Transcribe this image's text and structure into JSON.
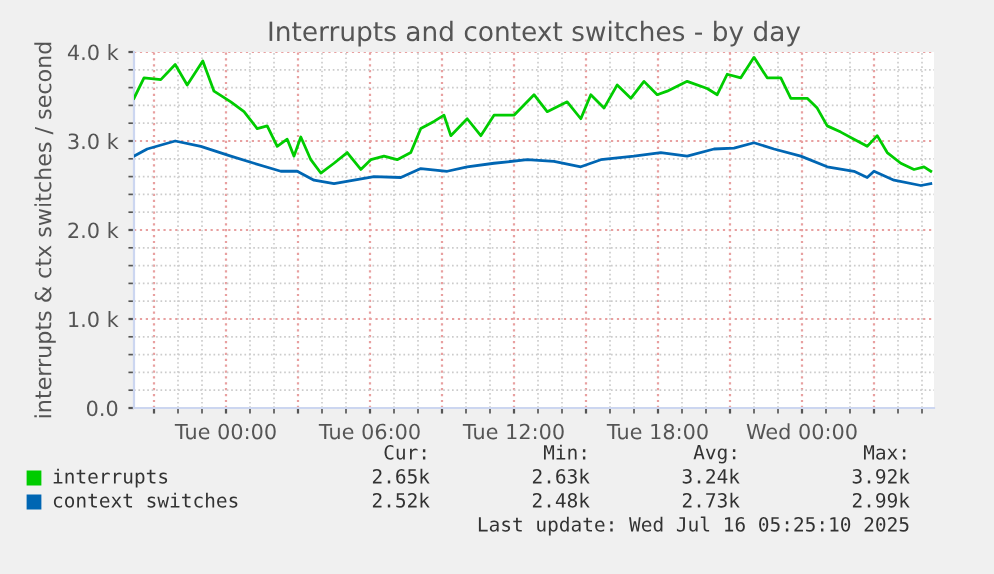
{
  "chart_data": {
    "type": "line",
    "title": "Interrupts and context switches - by day",
    "ylabel": "interrupts & ctx switches / second",
    "xlim": [
      "2025-07-14T20:10",
      "2025-07-16T05:30"
    ],
    "xticks": [
      {
        "value": "2025-07-14T21:00",
        "label": null
      },
      {
        "value": "2025-07-15T00:00",
        "label": "Tue 00:00"
      },
      {
        "value": "2025-07-15T03:00",
        "label": null
      },
      {
        "value": "2025-07-15T06:00",
        "label": "Tue 06:00"
      },
      {
        "value": "2025-07-15T09:00",
        "label": null
      },
      {
        "value": "2025-07-15T12:00",
        "label": "Tue 12:00"
      },
      {
        "value": "2025-07-15T15:00",
        "label": null
      },
      {
        "value": "2025-07-15T18:00",
        "label": "Tue 18:00"
      },
      {
        "value": "2025-07-15T21:00",
        "label": null
      },
      {
        "value": "2025-07-16T00:00",
        "label": "Wed 00:00"
      },
      {
        "value": "2025-07-16T03:00",
        "label": null
      }
    ],
    "ylim": [
      0,
      4000
    ],
    "yticks": [
      {
        "value": 0,
        "label": "0.0"
      },
      {
        "value": 1000,
        "label": "1.0 k"
      },
      {
        "value": 2000,
        "label": "2.0 k"
      },
      {
        "value": 3000,
        "label": "3.0 k"
      },
      {
        "value": 4000,
        "label": "4.0 k"
      }
    ],
    "grid": true,
    "legend": "bottom left",
    "marker": "none",
    "line_style": "solid",
    "series": [
      {
        "name": "interrupts",
        "color": "#00cc00",
        "x": [
          "2025-07-14T20:10",
          "2025-07-14T20:35",
          "2025-07-14T21:17",
          "2025-07-14T21:53",
          "2025-07-14T22:23",
          "2025-07-14T23:02",
          "2025-07-14T23:30",
          "2025-07-15T00:12",
          "2025-07-15T00:45",
          "2025-07-15T01:18",
          "2025-07-15T01:43",
          "2025-07-15T02:08",
          "2025-07-15T02:33",
          "2025-07-15T02:50",
          "2025-07-15T03:07",
          "2025-07-15T03:32",
          "2025-07-15T03:57",
          "2025-07-15T04:30",
          "2025-07-15T05:03",
          "2025-07-15T05:37",
          "2025-07-15T06:02",
          "2025-07-15T06:35",
          "2025-07-15T07:08",
          "2025-07-15T07:42",
          "2025-07-15T08:07",
          "2025-07-15T08:40",
          "2025-07-15T09:05",
          "2025-07-15T09:22",
          "2025-07-15T10:03",
          "2025-07-15T10:37",
          "2025-07-15T11:10",
          "2025-07-15T12:00",
          "2025-07-15T12:50",
          "2025-07-15T13:23",
          "2025-07-15T14:13",
          "2025-07-15T14:47",
          "2025-07-15T15:12",
          "2025-07-15T15:45",
          "2025-07-15T16:18",
          "2025-07-15T16:52",
          "2025-07-15T17:25",
          "2025-07-15T17:58",
          "2025-07-15T18:23",
          "2025-07-15T19:13",
          "2025-07-15T20:03",
          "2025-07-15T20:28",
          "2025-07-15T20:53",
          "2025-07-15T21:27",
          "2025-07-15T22:00",
          "2025-07-15T22:33",
          "2025-07-15T23:07",
          "2025-07-15T23:32",
          "2025-07-16T00:13",
          "2025-07-16T00:38",
          "2025-07-16T01:03",
          "2025-07-16T01:37",
          "2025-07-16T02:10",
          "2025-07-16T02:43",
          "2025-07-16T03:08",
          "2025-07-16T03:33",
          "2025-07-16T04:07",
          "2025-07-16T04:40",
          "2025-07-16T05:05",
          "2025-07-16T05:22"
        ],
        "values": [
          3480,
          3710,
          3690,
          3860,
          3630,
          3900,
          3560,
          3440,
          3330,
          3140,
          3170,
          2940,
          3020,
          2830,
          3045,
          2790,
          2640,
          2750,
          2870,
          2680,
          2790,
          2830,
          2790,
          2870,
          3140,
          3220,
          3290,
          3060,
          3250,
          3060,
          3290,
          3290,
          3520,
          3330,
          3440,
          3250,
          3520,
          3370,
          3630,
          3480,
          3670,
          3520,
          3560,
          3670,
          3590,
          3520,
          3750,
          3710,
          3940,
          3710,
          3710,
          3480,
          3480,
          3370,
          3170,
          3100,
          3020,
          2940,
          3060,
          2870,
          2750,
          2680,
          2710,
          2660
        ]
      },
      {
        "name": "context switches",
        "color": "#0066b3",
        "x": [
          "2025-07-14T20:10",
          "2025-07-14T20:43",
          "2025-07-14T21:53",
          "2025-07-14T22:57",
          "2025-07-15T00:12",
          "2025-07-15T01:10",
          "2025-07-15T02:17",
          "2025-07-15T02:58",
          "2025-07-15T03:40",
          "2025-07-15T04:30",
          "2025-07-15T05:20",
          "2025-07-15T06:10",
          "2025-07-15T07:17",
          "2025-07-15T08:07",
          "2025-07-15T09:13",
          "2025-07-15T10:03",
          "2025-07-15T11:10",
          "2025-07-15T12:33",
          "2025-07-15T13:40",
          "2025-07-15T14:47",
          "2025-07-15T15:37",
          "2025-07-15T17:00",
          "2025-07-15T18:07",
          "2025-07-15T19:13",
          "2025-07-15T20:20",
          "2025-07-15T21:10",
          "2025-07-15T22:00",
          "2025-07-15T22:50",
          "2025-07-15T23:57",
          "2025-07-16T01:03",
          "2025-07-16T02:10",
          "2025-07-16T02:43",
          "2025-07-16T03:00",
          "2025-07-16T03:50",
          "2025-07-16T04:57",
          "2025-07-16T05:22"
        ],
        "values": [
          2830,
          2910,
          3000,
          2940,
          2830,
          2750,
          2660,
          2660,
          2560,
          2520,
          2560,
          2600,
          2590,
          2690,
          2660,
          2710,
          2750,
          2790,
          2770,
          2710,
          2790,
          2830,
          2870,
          2830,
          2910,
          2920,
          2980,
          2910,
          2830,
          2710,
          2660,
          2590,
          2660,
          2560,
          2500,
          2520
        ]
      }
    ],
    "annotations": [
      "Cur:",
      "Min:",
      "Avg:",
      "Max:",
      "2.65k",
      "2.63k",
      "3.24k",
      "3.92k",
      "2.52k",
      "2.48k",
      "2.73k",
      "2.99k",
      "Last update: Wed Jul 16 05:25:10 2025"
    ]
  }
}
